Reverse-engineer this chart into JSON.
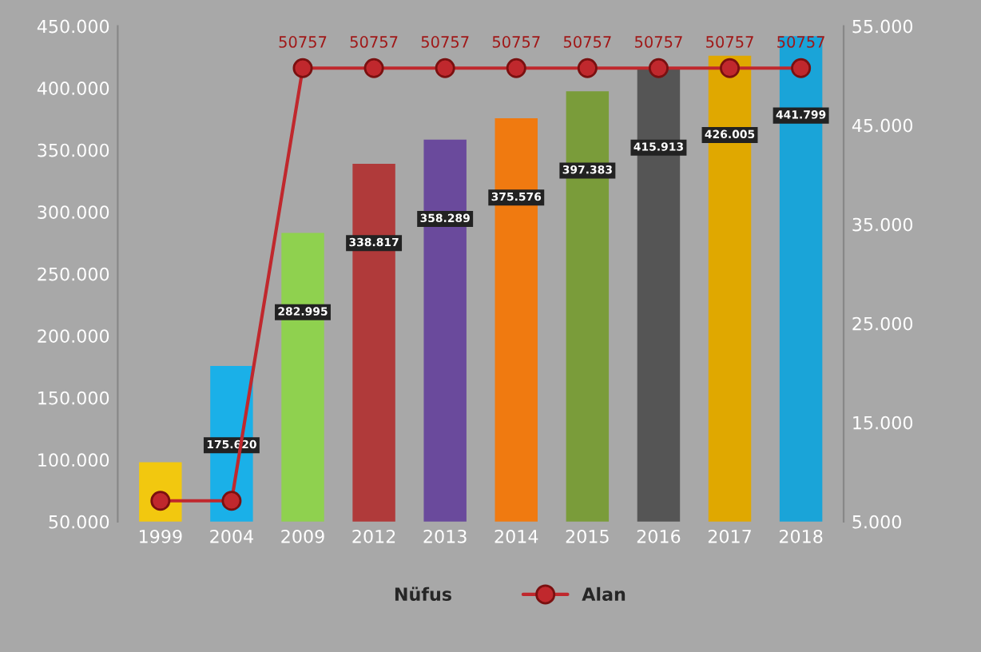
{
  "chart_data": {
    "type": "bar",
    "categories": [
      "1999",
      "2004",
      "2009",
      "2012",
      "2013",
      "2014",
      "2015",
      "2016",
      "2017",
      "2018"
    ],
    "series": [
      {
        "name": "Nüfus",
        "colors": [
          "#f2c80f",
          "#1ab0e8",
          "#8fd14f",
          "#b03a3a",
          "#6a4a9c",
          "#f07a10",
          "#7a9c3a",
          "#555555",
          "#e0a800",
          "#1aa4d8"
        ],
        "values": [
          98000,
          175620,
          282995,
          338817,
          358289,
          375576,
          397383,
          415913,
          426005,
          441799
        ],
        "value_labels": [
          null,
          "175.620",
          "282.995",
          "338.817",
          "358.289",
          "375.576",
          "397.383",
          "415.913",
          "426.005",
          "441.799"
        ]
      },
      {
        "name": "Alan",
        "type": "line",
        "axis": "y2",
        "color": "#c0282d",
        "marker": "circle",
        "values": [
          7100,
          7100,
          50757,
          50757,
          50757,
          50757,
          50757,
          50757,
          50757,
          50757
        ],
        "value_labels": [
          null,
          null,
          "50757",
          "50757",
          "50757",
          "50757",
          "50757",
          "50757",
          "50757",
          "50757"
        ]
      }
    ],
    "ylim": [
      50000,
      450000
    ],
    "yticks": [
      {
        "value": 50000,
        "label": "50.000"
      },
      {
        "value": 100000,
        "label": "100.000"
      },
      {
        "value": 150000,
        "label": "150.000"
      },
      {
        "value": 200000,
        "label": "200.000"
      },
      {
        "value": 250000,
        "label": "250.000"
      },
      {
        "value": 300000,
        "label": "300.000"
      },
      {
        "value": 350000,
        "label": "350.000"
      },
      {
        "value": 400000,
        "label": "400.000"
      },
      {
        "value": 450000,
        "label": "450.000"
      }
    ],
    "y2lim": [
      5000,
      55000
    ],
    "y2ticks": [
      {
        "value": 5000,
        "label": "5.000"
      },
      {
        "value": 15000,
        "label": "15.000"
      },
      {
        "value": 25000,
        "label": "25.000"
      },
      {
        "value": 35000,
        "label": "35.000"
      },
      {
        "value": 45000,
        "label": "45.000"
      },
      {
        "value": 55000,
        "label": "55.000"
      }
    ],
    "grid": false,
    "legend": "bottom"
  }
}
